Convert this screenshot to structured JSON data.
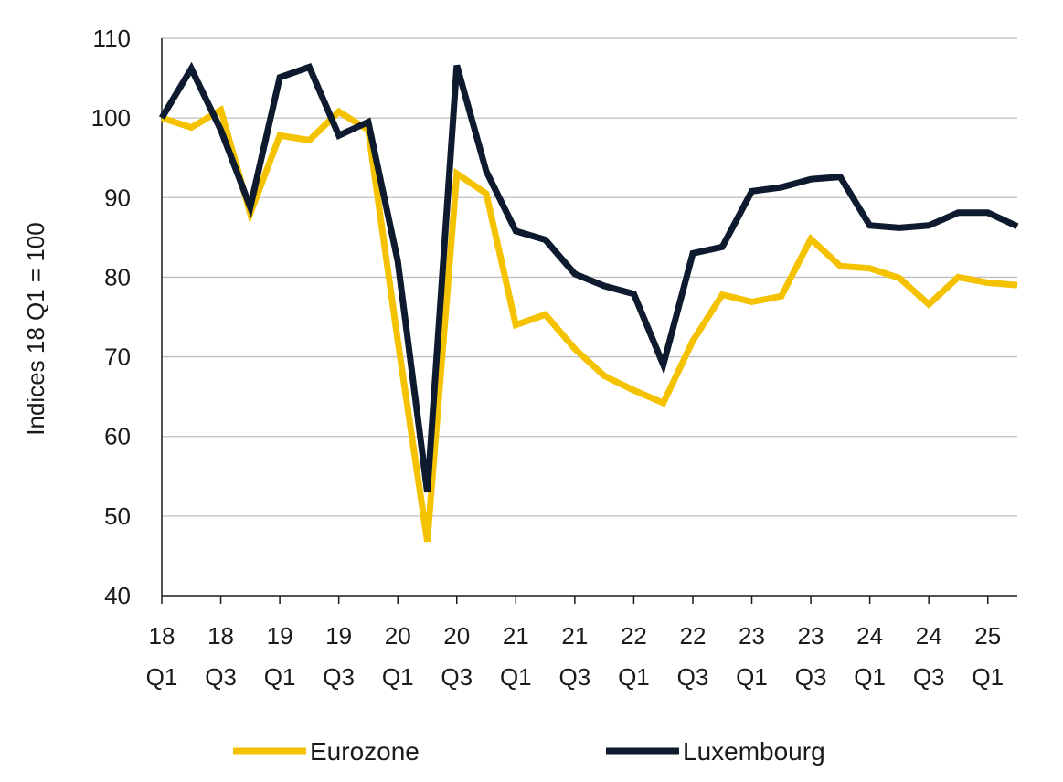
{
  "chart_data": {
    "type": "line",
    "title": "",
    "xlabel": "",
    "ylabel": "Indices 18 Q1 = 100",
    "ylim": [
      40,
      110
    ],
    "yticks": [
      40,
      50,
      60,
      70,
      80,
      90,
      100,
      110
    ],
    "grid": "horizontal",
    "legend_position": "bottom",
    "x": [
      "18 Q1",
      "18 Q2",
      "18 Q3",
      "18 Q4",
      "19 Q1",
      "19 Q2",
      "19 Q3",
      "19 Q4",
      "20 Q1",
      "20 Q2",
      "20 Q3",
      "20 Q4",
      "21 Q1",
      "21 Q2",
      "21 Q3",
      "21 Q4",
      "22 Q1",
      "22 Q2",
      "22 Q3",
      "22 Q4",
      "23 Q1",
      "23 Q2",
      "23 Q3",
      "23 Q4",
      "24 Q1",
      "24 Q2",
      "24 Q3",
      "24 Q4",
      "25 Q1",
      "25 Q2"
    ],
    "x_tick_labels": [
      {
        "top": "18",
        "bottom": "Q1"
      },
      {
        "top": "18",
        "bottom": "Q3"
      },
      {
        "top": "19",
        "bottom": "Q1"
      },
      {
        "top": "19",
        "bottom": "Q3"
      },
      {
        "top": "20",
        "bottom": "Q1"
      },
      {
        "top": "20",
        "bottom": "Q3"
      },
      {
        "top": "21",
        "bottom": "Q1"
      },
      {
        "top": "21",
        "bottom": "Q3"
      },
      {
        "top": "22",
        "bottom": "Q1"
      },
      {
        "top": "22",
        "bottom": "Q3"
      },
      {
        "top": "23",
        "bottom": "Q1"
      },
      {
        "top": "23",
        "bottom": "Q3"
      },
      {
        "top": "24",
        "bottom": "Q1"
      },
      {
        "top": "24",
        "bottom": "Q3"
      },
      {
        "top": "25",
        "bottom": "Q1"
      }
    ],
    "series": [
      {
        "name": "Eurozone",
        "color": "#F5C200",
        "values": [
          100,
          98.8,
          101,
          88,
          97.8,
          97.2,
          100.8,
          98.5,
          72,
          46.8,
          93,
          90.5,
          74,
          75.3,
          71,
          67.6,
          65.8,
          64.2,
          72,
          77.8,
          76.9,
          77.6,
          84.8,
          81.4,
          81.1,
          79.9,
          76.6,
          80,
          79.3,
          79
        ]
      },
      {
        "name": "Luxembourg",
        "color": "#0E1A2E",
        "values": [
          100,
          106.2,
          98.5,
          88.8,
          105.1,
          106.4,
          97.8,
          99.5,
          82,
          53,
          106.6,
          93.3,
          85.8,
          84.7,
          80.4,
          78.9,
          77.9,
          69,
          83,
          83.8,
          90.8,
          91.3,
          92.3,
          92.6,
          86.5,
          86.2,
          86.5,
          88.1,
          88.1,
          86.4
        ]
      }
    ]
  }
}
